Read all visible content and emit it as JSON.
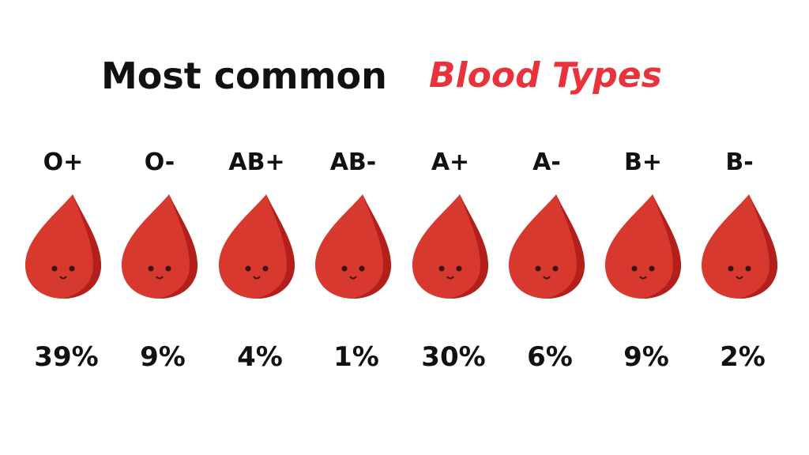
{
  "header": {
    "title": "Most common",
    "highlight": "Blood Types"
  },
  "items": [
    {
      "type": "O+",
      "share": "39%"
    },
    {
      "type": "O-",
      "share": "9%"
    },
    {
      "type": "AB+",
      "share": "4%"
    },
    {
      "type": "AB-",
      "share": "1%"
    },
    {
      "type": "A+",
      "share": "30%"
    },
    {
      "type": "A-",
      "share": "6%"
    },
    {
      "type": "B+",
      "share": "9%"
    },
    {
      "type": "B-",
      "share": "2%"
    }
  ]
}
